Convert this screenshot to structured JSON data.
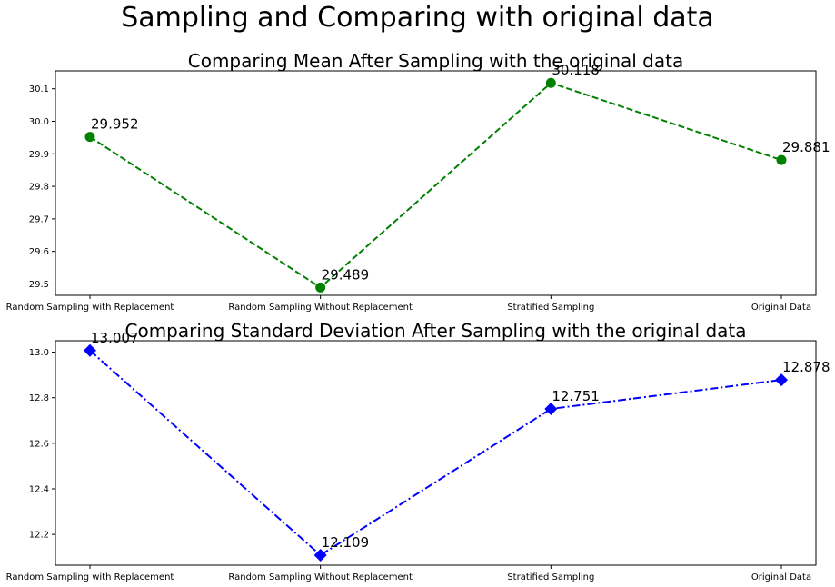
{
  "figure": {
    "suptitle": "Sampling and Comparing with original data"
  },
  "chart_data": [
    {
      "type": "line",
      "title": "Comparing Mean After Sampling with the original data",
      "xlabel": "",
      "ylabel": "",
      "categories": [
        "Random Sampling with Replacement",
        "Random Sampling Without Replacement",
        "Stratified Sampling",
        "Original Data"
      ],
      "values": [
        29.952,
        29.489,
        30.118,
        29.881
      ],
      "data_labels": [
        "29.952",
        "29.489",
        "30.118",
        "29.881"
      ],
      "ylim": [
        29.465,
        30.155
      ],
      "yticks": [
        29.5,
        29.6,
        29.7,
        29.8,
        29.9,
        30.0,
        30.1
      ],
      "ytick_labels": [
        "29.5",
        "29.6",
        "29.7",
        "29.8",
        "29.9",
        "30.0",
        "30.1"
      ],
      "line_style": "dashed",
      "marker": "circle",
      "color": "#008000",
      "grid": false
    },
    {
      "type": "line",
      "title": "Comparing Standard Deviation After Sampling with the original data",
      "xlabel": "",
      "ylabel": "",
      "categories": [
        "Random Sampling with Replacement",
        "Random Sampling Without Replacement",
        "Stratified Sampling",
        "Original Data"
      ],
      "values": [
        13.007,
        12.109,
        12.751,
        12.878
      ],
      "data_labels": [
        "13.007",
        "12.109",
        "12.751",
        "12.878"
      ],
      "ylim": [
        12.065,
        13.05
      ],
      "yticks": [
        12.2,
        12.4,
        12.6,
        12.8,
        13.0
      ],
      "ytick_labels": [
        "12.2",
        "12.4",
        "12.6",
        "12.8",
        "13.0"
      ],
      "line_style": "dashdot",
      "marker": "diamond",
      "color": "#0000ff",
      "grid": false
    }
  ]
}
